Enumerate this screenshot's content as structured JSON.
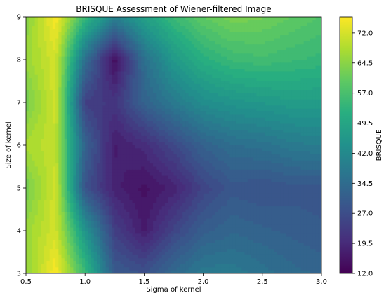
{
  "chart_data": {
    "type": "heatmap",
    "title": "BRISQUE Assessment of Wiener-filtered Image",
    "xlabel": "Sigma of kernel",
    "ylabel": "Size of kernel",
    "x": [
      0.5,
      0.75,
      1.0,
      1.25,
      1.5,
      1.75,
      2.0,
      2.25,
      2.5,
      2.75,
      3.0
    ],
    "y": [
      3,
      4,
      5,
      6,
      7,
      8,
      9
    ],
    "xlim": [
      0.5,
      3.0
    ],
    "ylim": [
      3,
      9
    ],
    "z": [
      [
        65,
        76,
        55,
        30,
        28,
        34,
        38,
        38,
        36,
        34,
        33
      ],
      [
        66,
        72,
        45,
        24,
        17,
        25,
        31,
        33,
        32,
        31,
        30
      ],
      [
        62,
        72,
        28,
        18,
        15,
        18,
        25,
        29,
        28,
        29,
        29
      ],
      [
        68,
        70,
        32,
        17,
        20,
        26,
        32,
        35,
        36,
        38,
        39
      ],
      [
        62,
        72,
        24,
        22,
        32,
        38,
        43,
        45,
        46,
        47,
        47
      ],
      [
        66,
        72,
        35,
        14,
        35,
        46,
        52,
        55,
        56,
        55,
        54
      ],
      [
        64,
        76,
        55,
        40,
        48,
        55,
        60,
        63,
        62,
        60,
        58
      ]
    ],
    "xticks": [
      "0.5",
      "1.0",
      "1.5",
      "2.0",
      "2.5",
      "3.0"
    ],
    "xtick_values": [
      0.5,
      1.0,
      1.5,
      2.0,
      2.5,
      3.0
    ],
    "yticks": [
      "3",
      "4",
      "5",
      "6",
      "7",
      "8",
      "9"
    ],
    "yticks_values": [
      3,
      4,
      5,
      6,
      7,
      8,
      9
    ],
    "colorbar": {
      "label": "BRISQUE",
      "min": 12.0,
      "max": 76.0,
      "ticks": [
        "12.0",
        "19.5",
        "27.0",
        "34.5",
        "42.0",
        "49.5",
        "57.0",
        "64.5",
        "72.0"
      ],
      "tick_values": [
        12.0,
        19.5,
        27.0,
        34.5,
        42.0,
        49.5,
        57.0,
        64.5,
        72.0
      ]
    },
    "colormap": "viridis",
    "grid": false
  }
}
